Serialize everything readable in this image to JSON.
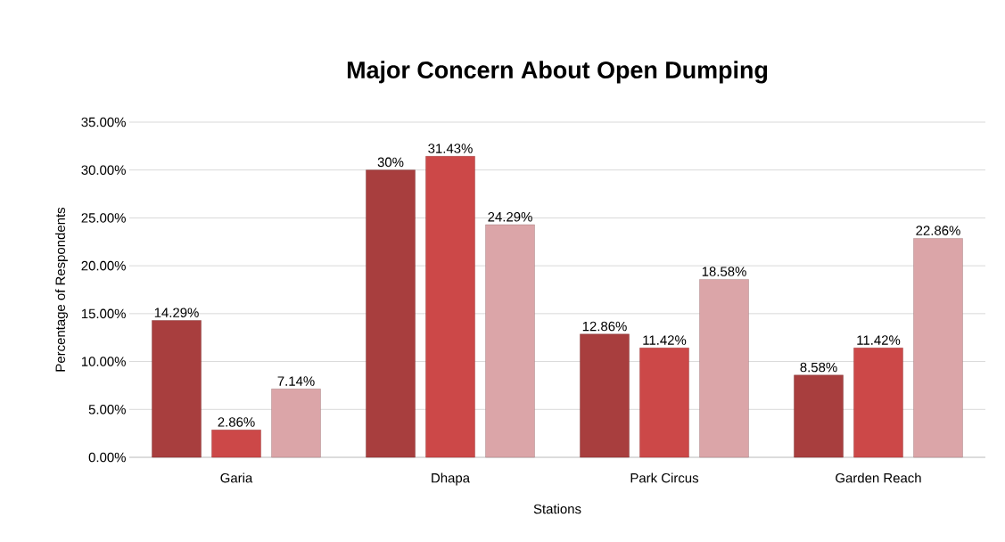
{
  "chart_data": {
    "type": "bar",
    "title": "Major Concern About Open Dumping",
    "xlabel": "Stations",
    "ylabel": "Percentage of Respondents",
    "categories": [
      "Garia",
      "Dhapa",
      "Park Circus",
      "Garden Reach"
    ],
    "series": [
      {
        "color": "#a83e3e",
        "values": [
          14.29,
          30,
          12.86,
          8.58
        ],
        "value_labels": [
          "14.29%",
          "30%",
          "12.86%",
          "8.58%"
        ]
      },
      {
        "color": "#cc4848",
        "values": [
          2.86,
          31.43,
          11.42,
          11.42
        ],
        "value_labels": [
          "2.86%",
          "31.43%",
          "11.42%",
          "11.42%"
        ]
      },
      {
        "color": "#dba5a8",
        "values": [
          7.14,
          24.29,
          18.58,
          22.86
        ],
        "value_labels": [
          "7.14%",
          "24.29%",
          "18.58%",
          "22.86%"
        ]
      }
    ],
    "ylim": [
      0,
      35
    ],
    "yticks": [
      {
        "value": 0,
        "label": "0.00%"
      },
      {
        "value": 5,
        "label": "5.00%"
      },
      {
        "value": 10,
        "label": "10.00%"
      },
      {
        "value": 15,
        "label": "15.00%"
      },
      {
        "value": 20,
        "label": "20.00%"
      },
      {
        "value": 25,
        "label": "25.00%"
      },
      {
        "value": 30,
        "label": "30.00%"
      },
      {
        "value": 35,
        "label": "35.00%"
      }
    ],
    "grid": "y"
  }
}
